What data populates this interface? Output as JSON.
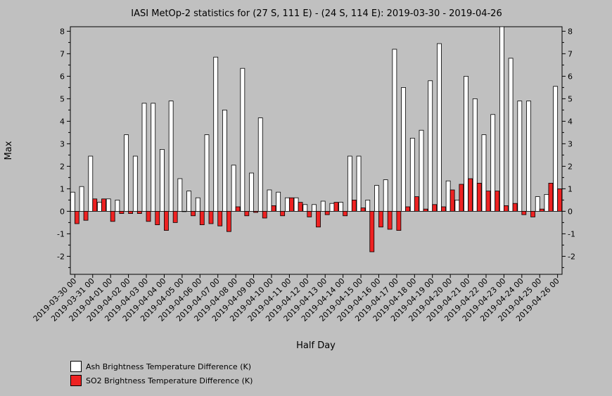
{
  "chart_data": {
    "type": "bar",
    "title": "IASI MetOp-2 statistics for (27 S, 111 E) - (24 S, 114 E): 2019-03-30 - 2019-04-26",
    "xlabel": "Half Day",
    "ylabel": "Max",
    "ylim": [
      -2.8,
      8.2
    ],
    "yticks": [
      -2,
      -1,
      0,
      1,
      2,
      3,
      4,
      5,
      6,
      7,
      8
    ],
    "xticks": [
      "2019-03-30 00",
      "2019-03-31 00",
      "2019-04-01 00",
      "2019-04-02 00",
      "2019-04-03 00",
      "2019-04-04 00",
      "2019-04-05 00",
      "2019-04-06 00",
      "2019-04-07 00",
      "2019-04-08 00",
      "2019-04-09 00",
      "2019-04-10 00",
      "2019-04-11 00",
      "2019-04-12 00",
      "2019-04-13 00",
      "2019-04-14 00",
      "2019-04-15 00",
      "2019-04-16 00",
      "2019-04-17 00",
      "2019-04-18 00",
      "2019-04-19 00",
      "2019-04-20 00",
      "2019-04-21 00",
      "2019-04-22 00",
      "2019-04-23 00",
      "2019-04-24 00",
      "2019-04-25 00",
      "2019-04-26 00"
    ],
    "grid": false,
    "legend_position": "bottom-left",
    "series": [
      {
        "name": "Ash Brightness Temperature Difference (K)",
        "color": "#ffffff",
        "values": [
          0.85,
          1.1,
          2.45,
          0.4,
          0.55,
          0.5,
          3.4,
          2.45,
          4.8,
          4.8,
          2.75,
          4.9,
          1.45,
          0.9,
          0.6,
          3.4,
          6.85,
          4.5,
          2.05,
          6.35,
          1.7,
          4.15,
          0.95,
          0.85,
          0.6,
          0.6,
          0.3,
          0.3,
          0.45,
          0.35,
          0.4,
          2.45,
          2.45,
          0.5,
          1.15,
          1.4,
          7.2,
          5.5,
          3.25,
          3.6,
          5.8,
          7.45,
          1.35,
          0.5,
          6.0,
          5.0,
          3.4,
          4.3,
          8.2,
          6.8,
          4.9,
          4.9,
          0.65,
          0.75,
          5.55
        ]
      },
      {
        "name": "SO2 Brightness Temperature Difference (K)",
        "color": "#ee2222",
        "values": [
          -0.55,
          -0.4,
          0.55,
          0.55,
          -0.45,
          -0.1,
          -0.1,
          -0.1,
          -0.45,
          -0.6,
          -0.85,
          -0.5,
          0.0,
          -0.2,
          -0.6,
          -0.55,
          -0.65,
          -0.9,
          0.2,
          -0.2,
          -0.05,
          -0.3,
          0.25,
          -0.2,
          0.6,
          0.4,
          -0.25,
          -0.7,
          -0.15,
          0.4,
          -0.2,
          0.5,
          0.15,
          -1.8,
          -0.7,
          -0.8,
          -0.85,
          0.2,
          0.65,
          0.1,
          0.3,
          0.2,
          0.95,
          1.2,
          1.45,
          1.25,
          0.9,
          0.9,
          0.25,
          0.35,
          -0.15,
          -0.25,
          0.1,
          1.25,
          1.0
        ]
      }
    ]
  }
}
